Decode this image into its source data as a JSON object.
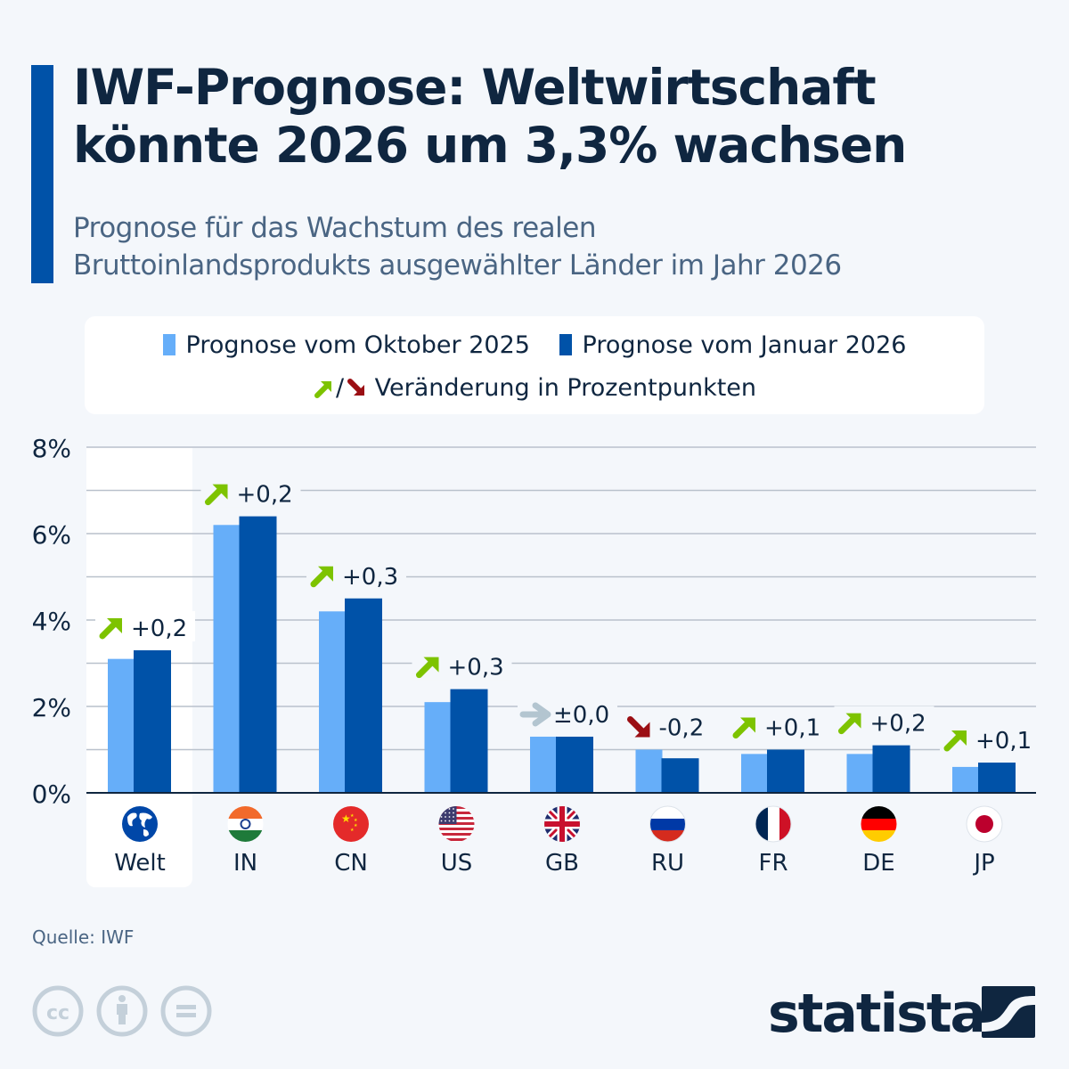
{
  "header": {
    "title_line1": "IWF-Prognose: Weltwirtschaft",
    "title_line2": "könnte 2026 um 3,3% wachsen",
    "subtitle_line1": "Prognose für das Wachstum des realen",
    "subtitle_line2": "Bruttoinlandsprodukts ausgewählter Länder im Jahr 2026"
  },
  "legend": {
    "series1": "Prognose vom Oktober 2025",
    "series2": "Prognose vom Januar 2026",
    "change_label": "Veränderung in Prozentpunkten",
    "slash": "/"
  },
  "colors": {
    "series1": "#66aef9",
    "series2": "#0052a8",
    "up": "#7dc300",
    "down": "#9b0f14",
    "neutral": "#b3c5d0",
    "text": "#0f2640",
    "grid": "#b9c1cc",
    "highlight_bg": "#ffffff"
  },
  "chart_data": {
    "type": "bar",
    "title": "IWF-Prognose: Weltwirtschaft könnte 2026 um 3,3% wachsen",
    "subtitle": "Prognose für das Wachstum des realen Bruttoinlandsprodukts ausgewählter Länder im Jahr 2026",
    "xlabel": "",
    "ylabel": "",
    "ylim": [
      0,
      8
    ],
    "yticks": [
      0,
      2,
      4,
      6,
      8
    ],
    "ytick_labels": [
      "0%",
      "2%",
      "4%",
      "6%",
      "8%"
    ],
    "grid": true,
    "legend_position": "top",
    "categories": [
      "Welt",
      "IN",
      "CN",
      "US",
      "GB",
      "RU",
      "FR",
      "DE",
      "JP"
    ],
    "flags": [
      "world-globe",
      "india-flag",
      "china-flag",
      "usa-flag",
      "uk-flag",
      "russia-flag",
      "france-flag",
      "germany-flag",
      "japan-flag"
    ],
    "series": [
      {
        "name": "Prognose vom Oktober 2025",
        "values": [
          3.1,
          6.2,
          4.2,
          2.1,
          1.3,
          1.0,
          0.9,
          0.9,
          0.6
        ]
      },
      {
        "name": "Prognose vom Januar 2026",
        "values": [
          3.3,
          6.4,
          4.5,
          2.4,
          1.3,
          0.8,
          1.0,
          1.1,
          0.7
        ]
      }
    ],
    "changes": [
      "+0,2",
      "+0,2",
      "+0,3",
      "+0,3",
      "±0,0",
      "-0,2",
      "+0,1",
      "+0,2",
      "+0,1"
    ],
    "change_direction": [
      "up",
      "up",
      "up",
      "up",
      "flat",
      "down",
      "up",
      "up",
      "up"
    ],
    "highlighted_category": "Welt"
  },
  "footer": {
    "source": "Quelle: IWF",
    "brand": "statista",
    "license_icons": [
      "cc-icon",
      "attribution-icon",
      "no-derivatives-icon"
    ]
  }
}
